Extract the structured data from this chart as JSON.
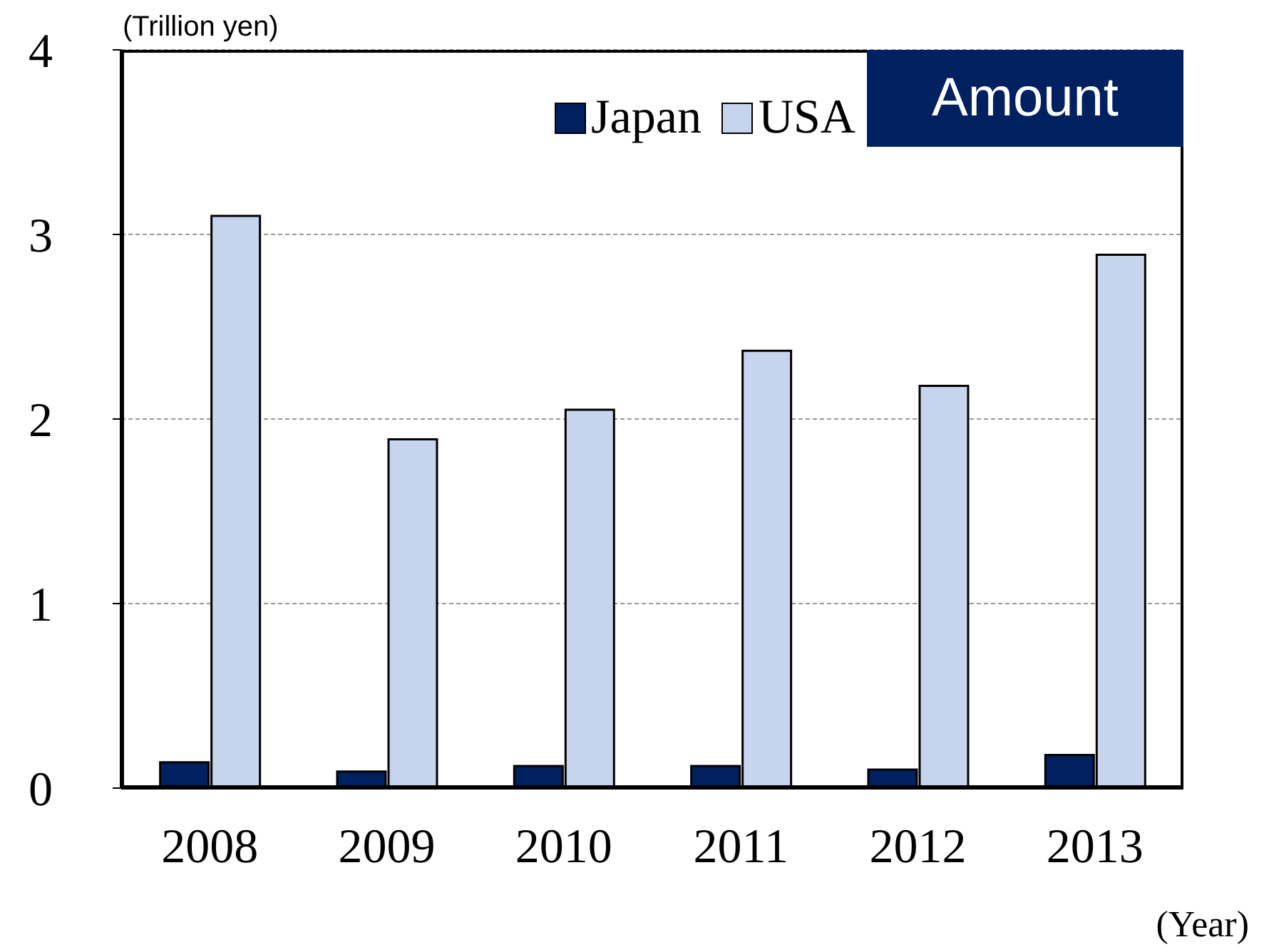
{
  "chart_data": {
    "type": "bar",
    "title": "Amount",
    "ylabel": "(Trillion yen)",
    "xlabel": "(Year)",
    "categories": [
      "2008",
      "2009",
      "2010",
      "2011",
      "2012",
      "2013"
    ],
    "series": [
      {
        "name": "Japan",
        "color": "#002060",
        "values": [
          0.14,
          0.09,
          0.12,
          0.12,
          0.1,
          0.18
        ]
      },
      {
        "name": "USA",
        "color": "#c6d4ee",
        "values": [
          3.1,
          1.89,
          2.05,
          2.37,
          2.18,
          2.89
        ]
      }
    ],
    "ylim": [
      0,
      4
    ],
    "yticks": [
      0,
      1,
      2,
      3,
      4
    ],
    "grid": "y",
    "legend": "top right"
  }
}
